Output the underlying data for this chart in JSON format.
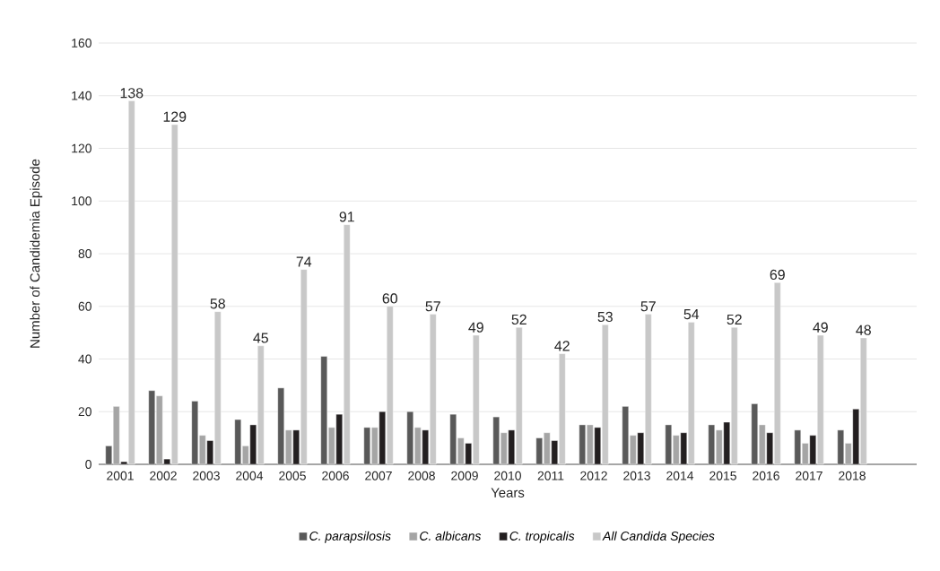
{
  "chart_data": {
    "type": "bar",
    "xlabel": "Years",
    "ylabel": "Number of Candidemia Episode",
    "categories": [
      "2001",
      "2002",
      "2003",
      "2004",
      "2005",
      "2006",
      "2007",
      "2008",
      "2009",
      "2010",
      "2011",
      "2012",
      "2013",
      "2014",
      "2015",
      "2016",
      "2017",
      "2018"
    ],
    "series": [
      {
        "name": "C. parapsilosis",
        "color": "#595959",
        "values": [
          7,
          28,
          24,
          17,
          29,
          41,
          14,
          20,
          19,
          18,
          10,
          15,
          22,
          15,
          15,
          23,
          13,
          13
        ]
      },
      {
        "name": "C. albicans",
        "color": "#a5a5a5",
        "values": [
          22,
          26,
          11,
          7,
          13,
          14,
          14,
          14,
          10,
          12,
          12,
          15,
          11,
          11,
          13,
          15,
          8,
          8
        ]
      },
      {
        "name": "C. tropicalis",
        "color": "#231f20",
        "values": [
          1,
          2,
          9,
          15,
          13,
          19,
          20,
          13,
          8,
          13,
          9,
          14,
          12,
          12,
          16,
          12,
          11,
          21
        ]
      },
      {
        "name": "All Candida Species",
        "color": "#c8c8c8",
        "values": [
          138,
          129,
          58,
          45,
          74,
          91,
          60,
          57,
          49,
          52,
          42,
          53,
          57,
          54,
          52,
          69,
          49,
          48
        ],
        "value_labels": [
          "138",
          "129",
          "58",
          "45",
          "74",
          "91",
          "60",
          "57",
          "49",
          "52",
          "42",
          "53",
          "57",
          "54",
          "52",
          "69",
          "49",
          "48"
        ]
      }
    ],
    "ylim": [
      0,
      160
    ],
    "yticks": [
      0,
      20,
      40,
      60,
      80,
      100,
      120,
      140,
      160
    ],
    "grid": "y",
    "legend": "bottom"
  }
}
